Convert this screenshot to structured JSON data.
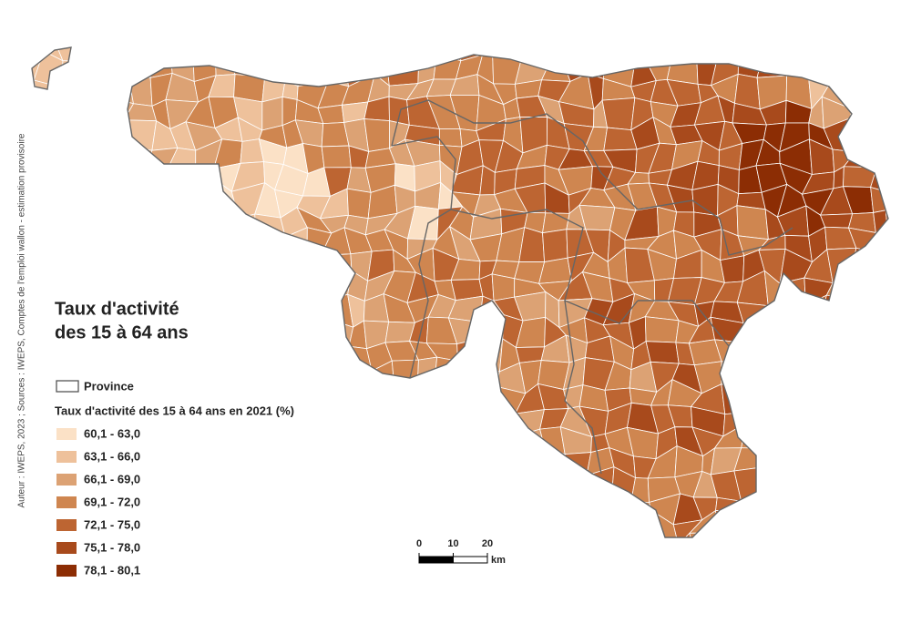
{
  "title_lines": [
    "Taux d'activité",
    "des 15 à 64 ans"
  ],
  "source": "Auteur : IWEPS, 2023 ; Sources : IWEPS, Comptes de l'emploi wallon - estimation provisoire",
  "legend": {
    "province_label": "Province",
    "title": "Taux d'activité des 15 à 64 ans en 2021 (%)",
    "classes": [
      {
        "label": "60,1 - 63,0",
        "color": "#fbe1c6"
      },
      {
        "label": "63,1 - 66,0",
        "color": "#eec19b"
      },
      {
        "label": "66,1 - 69,0",
        "color": "#dca274"
      },
      {
        "label": "69,1 - 72,0",
        "color": "#cf8650"
      },
      {
        "label": "72,1 - 75,0",
        "color": "#bd6532"
      },
      {
        "label": "75,1 - 78,0",
        "color": "#a84a1c"
      },
      {
        "label": "78,1 - 80,1",
        "color": "#8c2d04"
      }
    ]
  },
  "scale_bar": {
    "ticks": [
      0,
      10,
      20
    ],
    "unit": "km"
  }
}
